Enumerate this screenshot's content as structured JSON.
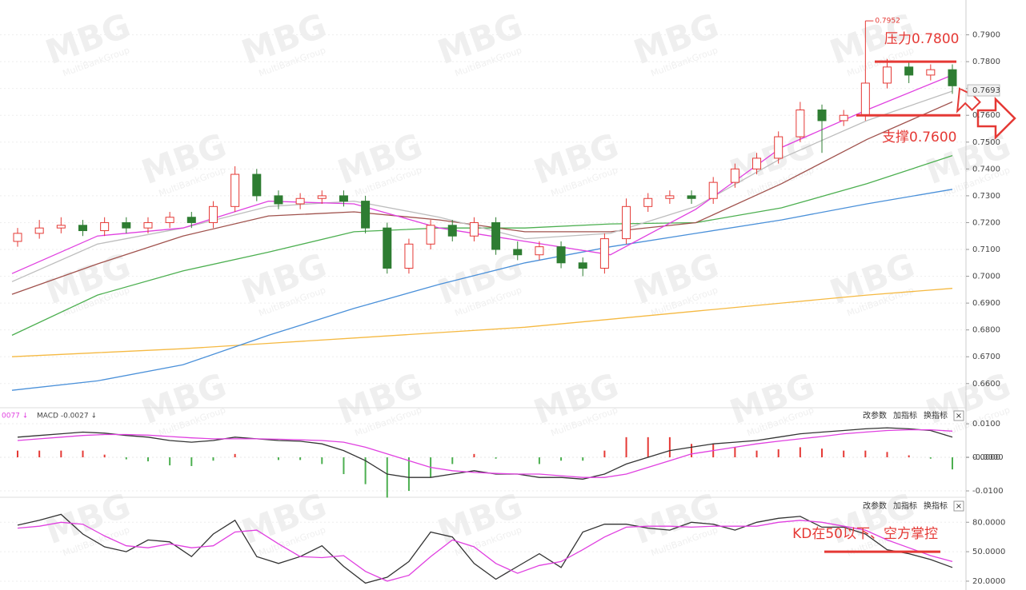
{
  "watermark": {
    "logo": "MBG",
    "text": "MultiBankGroup"
  },
  "chart_data": [
    {
      "type": "candlestick",
      "open": [
        0.713,
        0.716,
        0.718,
        0.719,
        0.717,
        0.72,
        0.718,
        0.72,
        0.722,
        0.72,
        0.726,
        0.738,
        0.73,
        0.727,
        0.729,
        0.73,
        0.728,
        0.718,
        0.703,
        0.712,
        0.719,
        0.715,
        0.72,
        0.71,
        0.708,
        0.711,
        0.705,
        0.703,
        0.714,
        0.726,
        0.729,
        0.73,
        0.729,
        0.735,
        0.74,
        0.744,
        0.752,
        0.762,
        0.758,
        0.76,
        0.772,
        0.778,
        0.775,
        0.777
      ],
      "high": [
        0.718,
        0.721,
        0.722,
        0.721,
        0.722,
        0.722,
        0.722,
        0.724,
        0.724,
        0.728,
        0.741,
        0.74,
        0.732,
        0.731,
        0.732,
        0.732,
        0.73,
        0.72,
        0.714,
        0.721,
        0.721,
        0.722,
        0.722,
        0.713,
        0.713,
        0.713,
        0.707,
        0.716,
        0.729,
        0.731,
        0.732,
        0.732,
        0.737,
        0.742,
        0.746,
        0.754,
        0.765,
        0.764,
        0.762,
        0.7952,
        0.781,
        0.78,
        0.779,
        0.779
      ],
      "low": [
        0.711,
        0.714,
        0.716,
        0.715,
        0.715,
        0.716,
        0.716,
        0.718,
        0.718,
        0.718,
        0.724,
        0.728,
        0.725,
        0.725,
        0.727,
        0.726,
        0.716,
        0.701,
        0.701,
        0.71,
        0.713,
        0.713,
        0.708,
        0.706,
        0.706,
        0.703,
        0.7,
        0.701,
        0.712,
        0.724,
        0.727,
        0.727,
        0.727,
        0.733,
        0.738,
        0.742,
        0.75,
        0.746,
        0.756,
        0.758,
        0.77,
        0.772,
        0.773,
        0.768
      ],
      "close": [
        0.716,
        0.718,
        0.719,
        0.717,
        0.72,
        0.718,
        0.72,
        0.722,
        0.72,
        0.726,
        0.738,
        0.73,
        0.727,
        0.729,
        0.73,
        0.728,
        0.718,
        0.703,
        0.712,
        0.719,
        0.715,
        0.72,
        0.71,
        0.708,
        0.711,
        0.705,
        0.703,
        0.714,
        0.726,
        0.729,
        0.73,
        0.729,
        0.735,
        0.74,
        0.744,
        0.752,
        0.762,
        0.758,
        0.76,
        0.772,
        0.778,
        0.775,
        0.777,
        0.771
      ],
      "series": [
        {
          "color": "#f5b942",
          "values": [
            0.67,
            0.6715,
            0.673,
            0.675,
            0.677,
            0.679,
            0.681,
            0.684,
            0.687,
            0.69,
            0.693,
            0.6955
          ]
        },
        {
          "color": "#4a90d9",
          "values": [
            0.6575,
            0.661,
            0.667,
            0.678,
            0.688,
            0.697,
            0.705,
            0.711,
            0.716,
            0.721,
            0.727,
            0.7324
          ]
        },
        {
          "color": "#4caf50",
          "values": [
            0.678,
            0.693,
            0.702,
            0.709,
            0.7166,
            0.718,
            0.718,
            0.7195,
            0.72,
            0.7255,
            0.7345,
            0.745
          ]
        },
        {
          "color": "#a0524d",
          "values": [
            0.6933,
            0.7046,
            0.715,
            0.7225,
            0.724,
            0.721,
            0.7166,
            0.7166,
            0.72,
            0.7345,
            0.751,
            0.765
          ]
        },
        {
          "color": "#bdbdbd",
          "values": [
            0.698,
            0.712,
            0.718,
            0.726,
            0.728,
            0.722,
            0.714,
            0.716,
            0.726,
            0.744,
            0.758,
            0.769
          ]
        },
        {
          "color": "#e040e0",
          "values": [
            0.701,
            0.715,
            0.718,
            0.728,
            0.727,
            0.718,
            0.713,
            0.708,
            0.725,
            0.748,
            0.762,
            0.775
          ]
        }
      ],
      "up_color": "#e53935",
      "down_color": "#2e7d32",
      "ylim": [
        0.651,
        0.8
      ],
      "yticks": [
        {
          "value": 0.79,
          "label": "0.7900"
        },
        {
          "value": 0.78,
          "label": "0.7800"
        },
        {
          "value": 0.77,
          "label": "0.7700"
        },
        {
          "value": 0.76,
          "label": "0.7600"
        },
        {
          "value": 0.75,
          "label": "0.7500"
        },
        {
          "value": 0.74,
          "label": "0.7400"
        },
        {
          "value": 0.73,
          "label": "0.7300"
        },
        {
          "value": 0.72,
          "label": "0.7200"
        },
        {
          "value": 0.71,
          "label": "0.7100"
        },
        {
          "value": 0.7,
          "label": "0.7000"
        },
        {
          "value": 0.69,
          "label": "0.6900"
        },
        {
          "value": 0.68,
          "label": "0.6800"
        },
        {
          "value": 0.67,
          "label": "0.6700"
        },
        {
          "value": 0.66,
          "label": "0.6600"
        }
      ],
      "last_price": 0.7693,
      "high_label": 0.7952,
      "annotations": [
        {
          "text": "压力0.7800",
          "value": 0.78
        },
        {
          "text": "支撑0.7600",
          "value": 0.76
        }
      ],
      "grid": true
    },
    {
      "type": "macd",
      "label": "0077 ↓",
      "label2": "MACD -0.0027 ↓",
      "tools": [
        "改参数",
        "加指标",
        "换指标",
        "×"
      ],
      "ylim": [
        -0.0119,
        0.0143
      ],
      "yticks": [
        {
          "value": 0.01,
          "label": "0.0100"
        },
        {
          "value": 4e-05,
          "label": "0.0000"
        },
        {
          "value": -4e-05,
          "label": "-0.0000"
        },
        {
          "value": -0.01,
          "label": "-0.0100"
        }
      ],
      "histogram": [
        0.002,
        0.002,
        0.002,
        0.002,
        0.0008,
        -0.0006,
        -0.0012,
        -0.0024,
        -0.0026,
        -0.001,
        0.001,
        0,
        -0.0008,
        -0.0008,
        -0.002,
        -0.005,
        -0.008,
        -0.012,
        -0.01,
        -0.006,
        -0.002,
        0.001,
        -0.0004,
        0,
        -0.002,
        -0.001,
        -0.001,
        0.002,
        0.006,
        0.006,
        0.006,
        0.004,
        0.004,
        0.003,
        0.002,
        0.0024,
        0.003,
        0.0026,
        0.002,
        0.002,
        0.0016,
        0.0006,
        -0.0004,
        -0.0036
      ],
      "up_color": "#e53935",
      "down_color": "#4caf50",
      "series": [
        {
          "color": "#333333",
          "values": [
            0.006,
            0.0065,
            0.007,
            0.0075,
            0.0072,
            0.0065,
            0.006,
            0.005,
            0.0045,
            0.005,
            0.006,
            0.0055,
            0.005,
            0.0048,
            0.004,
            0.002,
            -0.001,
            -0.005,
            -0.006,
            -0.006,
            -0.005,
            -0.004,
            -0.005,
            -0.005,
            -0.006,
            -0.006,
            -0.0065,
            -0.005,
            -0.002,
            0.0,
            0.002,
            0.003,
            0.004,
            0.0045,
            0.005,
            0.006,
            0.007,
            0.0075,
            0.008,
            0.0085,
            0.0088,
            0.0085,
            0.008,
            0.006
          ]
        },
        {
          "color": "#e040e0",
          "values": [
            0.005,
            0.0055,
            0.006,
            0.0065,
            0.0068,
            0.0068,
            0.0066,
            0.0062,
            0.0058,
            0.0055,
            0.0055,
            0.0055,
            0.0054,
            0.0052,
            0.005,
            0.0045,
            0.003,
            0.001,
            -0.001,
            -0.003,
            -0.004,
            -0.0045,
            -0.0048,
            -0.005,
            -0.005,
            -0.0055,
            -0.006,
            -0.006,
            -0.005,
            -0.003,
            -0.001,
            0.001,
            0.002,
            0.003,
            0.004,
            0.0048,
            0.0055,
            0.0062,
            0.007,
            0.0075,
            0.008,
            0.0082,
            0.0082,
            0.0078
          ]
        }
      ]
    },
    {
      "type": "line",
      "tools": [
        "改参数",
        "加指标",
        "换指标",
        "×"
      ],
      "ylim": [
        11,
        103
      ],
      "yticks": [
        {
          "value": 80,
          "label": "80.0000"
        },
        {
          "value": 50,
          "label": "50.0000"
        },
        {
          "value": 20,
          "label": "20.0000"
        }
      ],
      "series": [
        {
          "color": "#333333",
          "values": [
            77,
            82,
            88,
            68,
            55,
            50,
            62,
            60,
            45,
            68,
            82,
            45,
            38,
            45,
            56,
            35,
            18,
            24,
            40,
            70,
            65,
            38,
            22,
            35,
            48,
            34,
            70,
            78,
            78,
            74,
            72,
            80,
            78,
            72,
            80,
            84,
            86,
            75,
            75,
            68,
            52,
            48,
            42,
            34
          ]
        },
        {
          "color": "#e040e0",
          "values": [
            74,
            76,
            80,
            78,
            66,
            56,
            54,
            58,
            54,
            56,
            70,
            72,
            58,
            45,
            44,
            46,
            30,
            20,
            26,
            45,
            62,
            55,
            38,
            28,
            36,
            40,
            52,
            65,
            75,
            76,
            76,
            75,
            76,
            76,
            76,
            80,
            82,
            80,
            76,
            72,
            62,
            54,
            46,
            40
          ]
        }
      ],
      "annotations": [
        {
          "text": "KD在50以下、空方掌控",
          "value": 50
        }
      ]
    }
  ]
}
